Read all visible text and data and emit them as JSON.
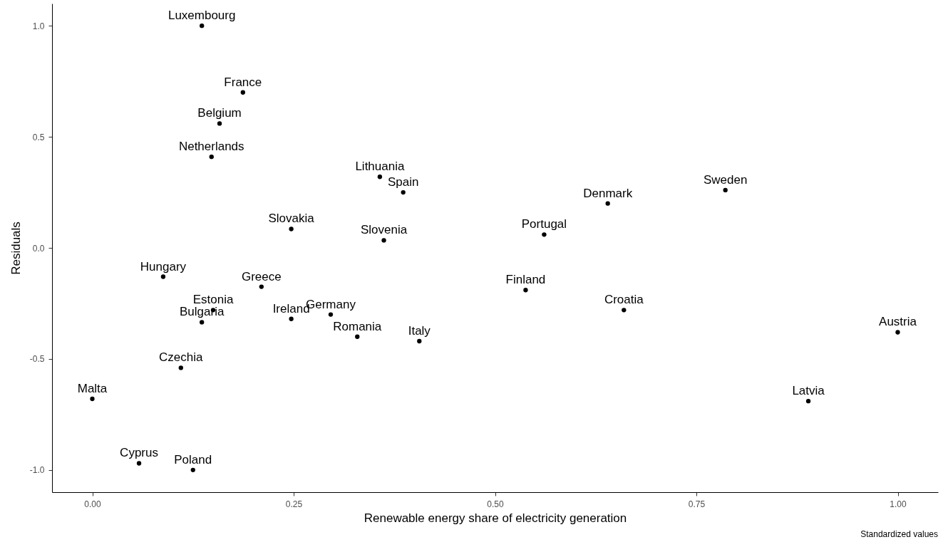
{
  "chart_data": {
    "type": "scatter",
    "xlabel": "Renewable energy share of electricity generation",
    "ylabel": "Residuals",
    "annotations": [
      "Standardized values"
    ],
    "xlim": [
      -0.05,
      1.05
    ],
    "ylim": [
      -1.1,
      1.1
    ],
    "xticks": [
      {
        "value": 0,
        "label": "0.00"
      },
      {
        "value": 0.25,
        "label": "0.25"
      },
      {
        "value": 0.5,
        "label": "0.50"
      },
      {
        "value": 0.75,
        "label": "0.75"
      },
      {
        "value": 1,
        "label": "1.00"
      }
    ],
    "yticks": [
      {
        "value": -1,
        "label": "-1.0"
      },
      {
        "value": -0.5,
        "label": "-0.5"
      },
      {
        "value": 0,
        "label": "0.0"
      },
      {
        "value": 0.5,
        "label": "0.5"
      },
      {
        "value": 1,
        "label": "1.0"
      }
    ],
    "grid": false,
    "marker": "circle",
    "series": [
      {
        "name": "Luxembourg",
        "color": "#000000",
        "x": [
          0.136
        ],
        "values": [
          1.0
        ]
      },
      {
        "name": "France",
        "color": "#000000",
        "x": [
          0.187
        ],
        "values": [
          0.7
        ]
      },
      {
        "name": "Belgium",
        "color": "#000000",
        "x": [
          0.158
        ],
        "values": [
          0.56
        ]
      },
      {
        "name": "Netherlands",
        "color": "#000000",
        "x": [
          0.148
        ],
        "values": [
          0.41
        ]
      },
      {
        "name": "Lithuania",
        "color": "#000000",
        "x": [
          0.357
        ],
        "values": [
          0.32
        ]
      },
      {
        "name": "Spain",
        "color": "#000000",
        "x": [
          0.386
        ],
        "values": [
          0.25
        ]
      },
      {
        "name": "Sweden",
        "color": "#000000",
        "x": [
          0.786
        ],
        "values": [
          0.26
        ]
      },
      {
        "name": "Denmark",
        "color": "#000000",
        "x": [
          0.64
        ],
        "values": [
          0.2
        ]
      },
      {
        "name": "Slovakia",
        "color": "#000000",
        "x": [
          0.247
        ],
        "values": [
          0.085
        ]
      },
      {
        "name": "Slovenia",
        "color": "#000000",
        "x": [
          0.362
        ],
        "values": [
          0.034
        ]
      },
      {
        "name": "Portugal",
        "color": "#000000",
        "x": [
          0.561
        ],
        "values": [
          0.06
        ]
      },
      {
        "name": "Hungary",
        "color": "#000000",
        "x": [
          0.088
        ],
        "values": [
          -0.13
        ]
      },
      {
        "name": "Greece",
        "color": "#000000",
        "x": [
          0.21
        ],
        "values": [
          -0.175
        ]
      },
      {
        "name": "Finland",
        "color": "#000000",
        "x": [
          0.538
        ],
        "values": [
          -0.19
        ]
      },
      {
        "name": "Estonia",
        "color": "#000000",
        "x": [
          0.15
        ],
        "values": [
          -0.28
        ]
      },
      {
        "name": "Bulgaria",
        "color": "#000000",
        "x": [
          0.136
        ],
        "values": [
          -0.335
        ]
      },
      {
        "name": "Ireland",
        "color": "#000000",
        "x": [
          0.247
        ],
        "values": [
          -0.32
        ]
      },
      {
        "name": "Germany",
        "color": "#000000",
        "x": [
          0.296
        ],
        "values": [
          -0.3
        ]
      },
      {
        "name": "Croatia",
        "color": "#000000",
        "x": [
          0.66
        ],
        "values": [
          -0.28
        ]
      },
      {
        "name": "Romania",
        "color": "#000000",
        "x": [
          0.329
        ],
        "values": [
          -0.4
        ]
      },
      {
        "name": "Italy",
        "color": "#000000",
        "x": [
          0.406
        ],
        "values": [
          -0.42
        ]
      },
      {
        "name": "Austria",
        "color": "#000000",
        "x": [
          1.0
        ],
        "values": [
          -0.38
        ]
      },
      {
        "name": "Czechia",
        "color": "#000000",
        "x": [
          0.11
        ],
        "values": [
          -0.54
        ]
      },
      {
        "name": "Malta",
        "color": "#000000",
        "x": [
          0.0
        ],
        "values": [
          -0.68
        ]
      },
      {
        "name": "Latvia",
        "color": "#000000",
        "x": [
          0.889
        ],
        "values": [
          -0.69
        ]
      },
      {
        "name": "Cyprus",
        "color": "#000000",
        "x": [
          0.058
        ],
        "values": [
          -0.97
        ]
      },
      {
        "name": "Poland",
        "color": "#000000",
        "x": [
          0.125
        ],
        "values": [
          -1.0
        ]
      }
    ]
  }
}
